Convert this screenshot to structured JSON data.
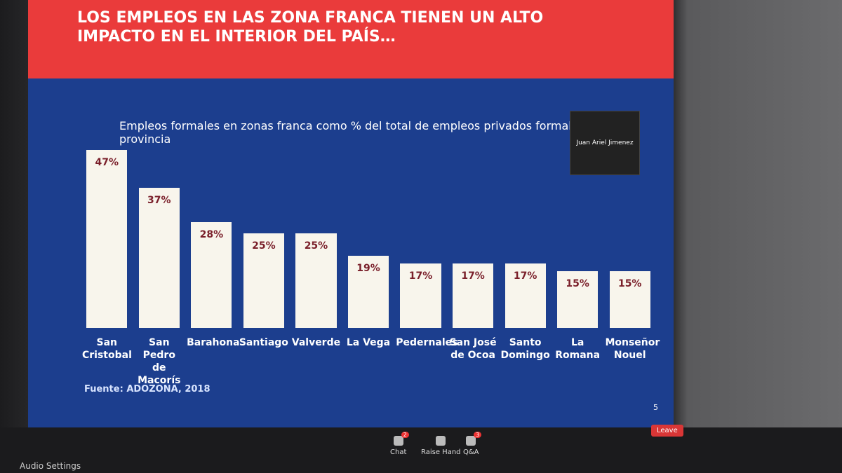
{
  "slide": {
    "title": "LOS EMPLEOS EN LAS ZONA FRANCA TIENEN UN ALTO IMPACTO EN EL INTERIOR DEL PAÍS…",
    "page_number": "5"
  },
  "chart_data": {
    "type": "bar",
    "title": "Empleos formales en zonas franca como % del total de empleos privados formales por provincia",
    "categories": [
      "San Cristobal",
      "San Pedro de Macorís",
      "Barahona",
      "Santiago",
      "Valverde",
      "La Vega",
      "Pedernales",
      "San José de Ocoa",
      "Santo Domingo",
      "La Romana",
      "Monseñor Nouel"
    ],
    "values": [
      47,
      37,
      28,
      25,
      25,
      19,
      17,
      17,
      17,
      15,
      15
    ],
    "value_labels": [
      "47%",
      "37%",
      "28%",
      "25%",
      "25%",
      "19%",
      "17%",
      "17%",
      "17%",
      "15%",
      "15%"
    ],
    "color": "#f8f5ec",
    "source": "Fuente: ADOZONA, 2018"
  },
  "video": {
    "participant": "Juan Ariel Jimenez"
  },
  "toolbar": {
    "chat": "Chat",
    "chat_badge": "2",
    "raise_hand": "Raise Hand",
    "qa": "Q&A",
    "qa_badge": "3",
    "leave": "Leave",
    "audio_settings": "Audio Settings"
  }
}
